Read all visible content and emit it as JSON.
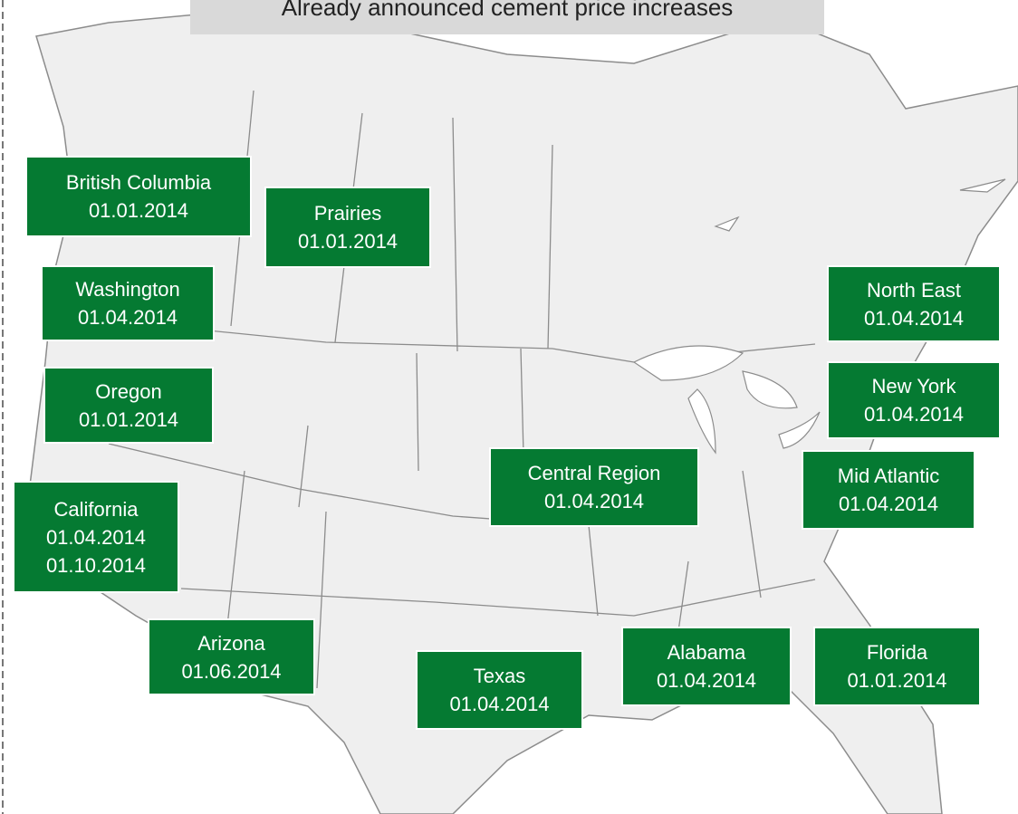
{
  "title": "Already announced cement price increases",
  "regions": [
    {
      "name": "British Columbia",
      "dates": [
        "01.01.2014"
      ]
    },
    {
      "name": "Prairies",
      "dates": [
        "01.01.2014"
      ]
    },
    {
      "name": "Washington",
      "dates": [
        "01.04.2014"
      ]
    },
    {
      "name": "Oregon",
      "dates": [
        "01.01.2014"
      ]
    },
    {
      "name": "California",
      "dates": [
        "01.04.2014",
        "01.10.2014"
      ]
    },
    {
      "name": "Arizona",
      "dates": [
        "01.06.2014"
      ]
    },
    {
      "name": "Texas",
      "dates": [
        "01.04.2014"
      ]
    },
    {
      "name": "Central Region",
      "dates": [
        "01.04.2014"
      ]
    },
    {
      "name": "Alabama",
      "dates": [
        "01.04.2014"
      ]
    },
    {
      "name": "Florida",
      "dates": [
        "01.01.2014"
      ]
    },
    {
      "name": "North East",
      "dates": [
        "01.04.2014"
      ]
    },
    {
      "name": "New York",
      "dates": [
        "01.04.2014"
      ]
    },
    {
      "name": "Mid Atlantic",
      "dates": [
        "01.04.2014"
      ]
    }
  ]
}
